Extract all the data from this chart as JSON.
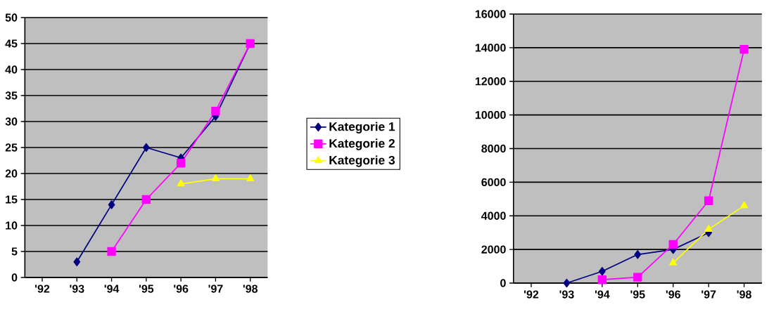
{
  "chart_data": [
    {
      "type": "line",
      "categories": [
        "'92",
        "'93",
        "'94",
        "'95",
        "'96",
        "'97",
        "'98"
      ],
      "ylim": [
        0,
        50
      ],
      "yticks": [
        0,
        5,
        10,
        15,
        20,
        25,
        30,
        35,
        40,
        45,
        50
      ],
      "grid": "y",
      "legend": "right",
      "line_style": "solid",
      "series": [
        {
          "name": "Kategorie 1",
          "color": "#000080",
          "marker": "diamond",
          "values": [
            null,
            3,
            14,
            25,
            23,
            31,
            45
          ]
        },
        {
          "name": "Kategorie 2",
          "color": "#ff00ff",
          "marker": "square",
          "values": [
            null,
            null,
            5,
            15,
            22,
            32,
            45
          ]
        },
        {
          "name": "Kategorie 3",
          "color": "#ffff00",
          "marker": "triangle",
          "values": [
            null,
            null,
            null,
            null,
            18,
            19,
            19
          ]
        }
      ]
    },
    {
      "type": "line",
      "categories": [
        "'92",
        "'93",
        "'94",
        "'95",
        "'96",
        "'97",
        "'98"
      ],
      "ylim": [
        0,
        16000
      ],
      "yticks": [
        0,
        2000,
        4000,
        6000,
        8000,
        10000,
        12000,
        14000,
        16000
      ],
      "grid": "y",
      "line_style": "solid",
      "series": [
        {
          "color": "#000080",
          "marker": "diamond",
          "values": [
            null,
            0,
            700,
            1700,
            2000,
            3000,
            null
          ]
        },
        {
          "color": "#ff00ff",
          "marker": "square",
          "values": [
            null,
            null,
            200,
            350,
            2300,
            4900,
            13900
          ]
        },
        {
          "color": "#ffff00",
          "marker": "triangle",
          "values": [
            null,
            null,
            null,
            null,
            1200,
            3200,
            4600
          ]
        }
      ]
    }
  ]
}
